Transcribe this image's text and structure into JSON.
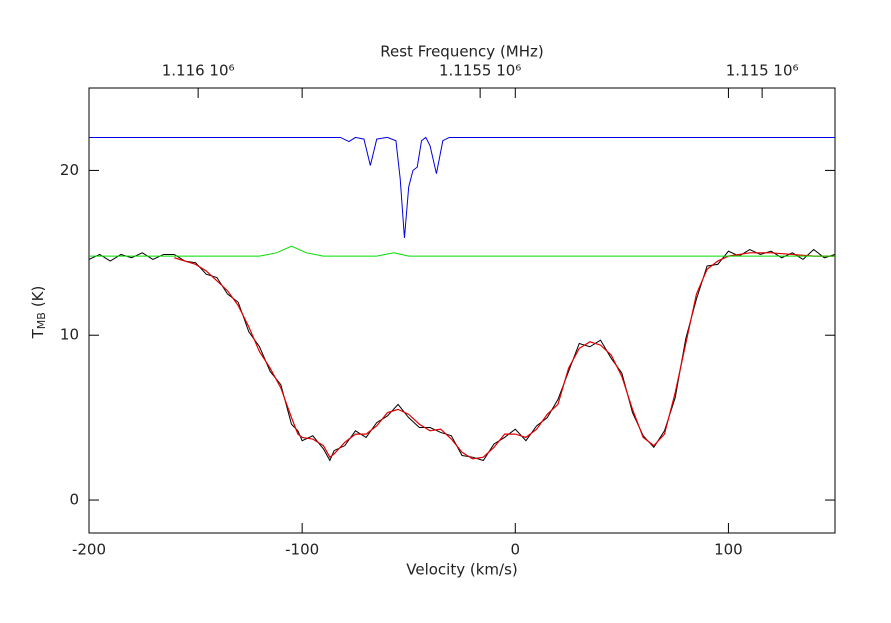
{
  "chart_data": {
    "type": "line",
    "x_label": "Velocity (km/s)",
    "x2_label": "Rest Frequency (MHz)",
    "y_label": [
      "T",
      "MB",
      "(K)"
    ],
    "xlim": [
      -200,
      150
    ],
    "ylim": [
      -2,
      25
    ],
    "xticks": [
      -200,
      -100,
      0,
      100
    ],
    "yticks": [
      0,
      10,
      20
    ],
    "x2lim": [
      1116193.5,
      1114870.8
    ],
    "x2ticks": [
      {
        "value": 1116000,
        "label": "1.116 10⁶"
      },
      {
        "value": 1115500,
        "label": "1.1155 10⁶"
      },
      {
        "value": 1115000,
        "label": "1.115 10⁶"
      }
    ],
    "series": [
      {
        "color": "#000000",
        "width": 1,
        "x": [
          -200,
          -195,
          -190,
          -185,
          -180,
          -175,
          -170,
          -165,
          -160,
          -155,
          -150,
          -145,
          -140,
          -135,
          -130,
          -125,
          -120,
          -115,
          -110,
          -105,
          -102,
          -100,
          -95,
          -90,
          -87,
          -85,
          -80,
          -75,
          -70,
          -65,
          -60,
          -55,
          -50,
          -45,
          -40,
          -35,
          -30,
          -25,
          -20,
          -15,
          -10,
          -5,
          0,
          5,
          10,
          15,
          20,
          25,
          30,
          35,
          40,
          45,
          50,
          55,
          60,
          65,
          70,
          75,
          80,
          85,
          90,
          95,
          100,
          105,
          110,
          115,
          120,
          125,
          130,
          135,
          140,
          145,
          150
        ],
        "values": [
          14.6,
          14.9,
          14.5,
          14.9,
          14.7,
          15.0,
          14.6,
          14.9,
          14.9,
          14.5,
          14.4,
          13.7,
          13.5,
          12.5,
          12.0,
          10.2,
          9.3,
          7.8,
          7.0,
          4.6,
          4.2,
          3.6,
          3.9,
          3.1,
          2.4,
          3.0,
          3.3,
          4.2,
          3.8,
          4.7,
          5.1,
          5.8,
          5.0,
          4.4,
          4.4,
          4.1,
          3.9,
          2.7,
          2.6,
          2.4,
          3.4,
          3.8,
          4.3,
          3.6,
          4.5,
          5.0,
          6.1,
          7.8,
          9.5,
          9.3,
          9.7,
          8.6,
          7.7,
          5.3,
          3.9,
          3.2,
          4.2,
          6.2,
          9.8,
          12.2,
          14.2,
          14.3,
          15.1,
          14.8,
          15.2,
          14.9,
          15.1,
          14.7,
          15.0,
          14.6,
          15.2,
          14.7,
          14.9
        ]
      },
      {
        "color": "#e00000",
        "width": 1.2,
        "x": [
          -160,
          -155,
          -150,
          -145,
          -140,
          -135,
          -130,
          -125,
          -120,
          -115,
          -110,
          -105,
          -102,
          -100,
          -95,
          -90,
          -87,
          -85,
          -80,
          -75,
          -70,
          -65,
          -60,
          -55,
          -50,
          -45,
          -40,
          -35,
          -30,
          -25,
          -20,
          -15,
          -10,
          -5,
          0,
          5,
          10,
          15,
          20,
          25,
          30,
          35,
          40,
          45,
          50,
          55,
          60,
          65,
          70,
          75,
          80,
          85,
          90,
          95,
          100,
          110,
          120,
          130,
          140,
          150
        ],
        "values": [
          14.7,
          14.5,
          14.3,
          13.9,
          13.3,
          12.7,
          11.8,
          10.5,
          9.0,
          8.0,
          6.8,
          5.0,
          4.0,
          3.8,
          3.7,
          3.3,
          2.6,
          2.8,
          3.5,
          4.0,
          4.0,
          4.5,
          5.3,
          5.5,
          5.2,
          4.6,
          4.2,
          4.3,
          3.7,
          2.9,
          2.5,
          2.6,
          3.2,
          4.0,
          4.0,
          3.8,
          4.3,
          5.2,
          5.8,
          8.0,
          9.2,
          9.6,
          9.4,
          8.8,
          7.5,
          5.5,
          3.8,
          3.3,
          4.0,
          6.5,
          9.5,
          12.5,
          14.0,
          14.5,
          14.8,
          15.0,
          15.0,
          14.9,
          14.8,
          14.8
        ]
      },
      {
        "color": "#00e000",
        "width": 1,
        "x": [
          -200,
          -120,
          -112,
          -105,
          -98,
          -90,
          -65,
          -57,
          -50,
          150
        ],
        "values": [
          14.8,
          14.8,
          15.0,
          15.4,
          15.0,
          14.8,
          14.8,
          15.0,
          14.8,
          14.8
        ]
      },
      {
        "color": "#0000e0",
        "width": 1,
        "x": [
          -200,
          -82,
          -78,
          -75,
          -71,
          -68,
          -65,
          -60,
          -56,
          -54,
          -52,
          -50,
          -48,
          -46,
          -44,
          -42,
          -40,
          -37,
          -34,
          -31,
          150
        ],
        "values": [
          22,
          22,
          21.75,
          22,
          21.9,
          20.3,
          21.9,
          22,
          21.8,
          19.5,
          15.9,
          19,
          20,
          20.2,
          21.8,
          22,
          21.5,
          19.8,
          21.8,
          22,
          22
        ]
      }
    ]
  }
}
